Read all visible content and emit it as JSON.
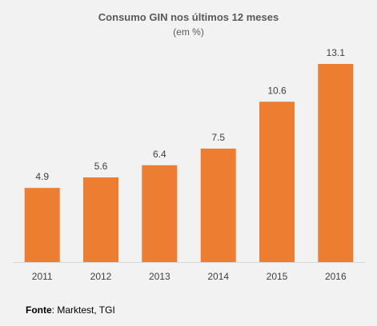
{
  "chart_data": {
    "type": "bar",
    "title": "Consumo GIN nos últimos 12 meses",
    "subtitle": "(em %)",
    "categories": [
      "2011",
      "2012",
      "2013",
      "2014",
      "2015",
      "2016"
    ],
    "values": [
      4.9,
      5.6,
      6.4,
      7.5,
      10.6,
      13.1
    ],
    "data_labels": [
      "4.9",
      "5.6",
      "6.4",
      "7.5",
      "10.6",
      "13.1"
    ],
    "bar_color": "#ed7d31",
    "ylim": [
      0,
      13.1
    ],
    "grid": false,
    "legend": "none"
  },
  "source": {
    "label": "Fonte",
    "text": ": Marktest, TGI"
  }
}
